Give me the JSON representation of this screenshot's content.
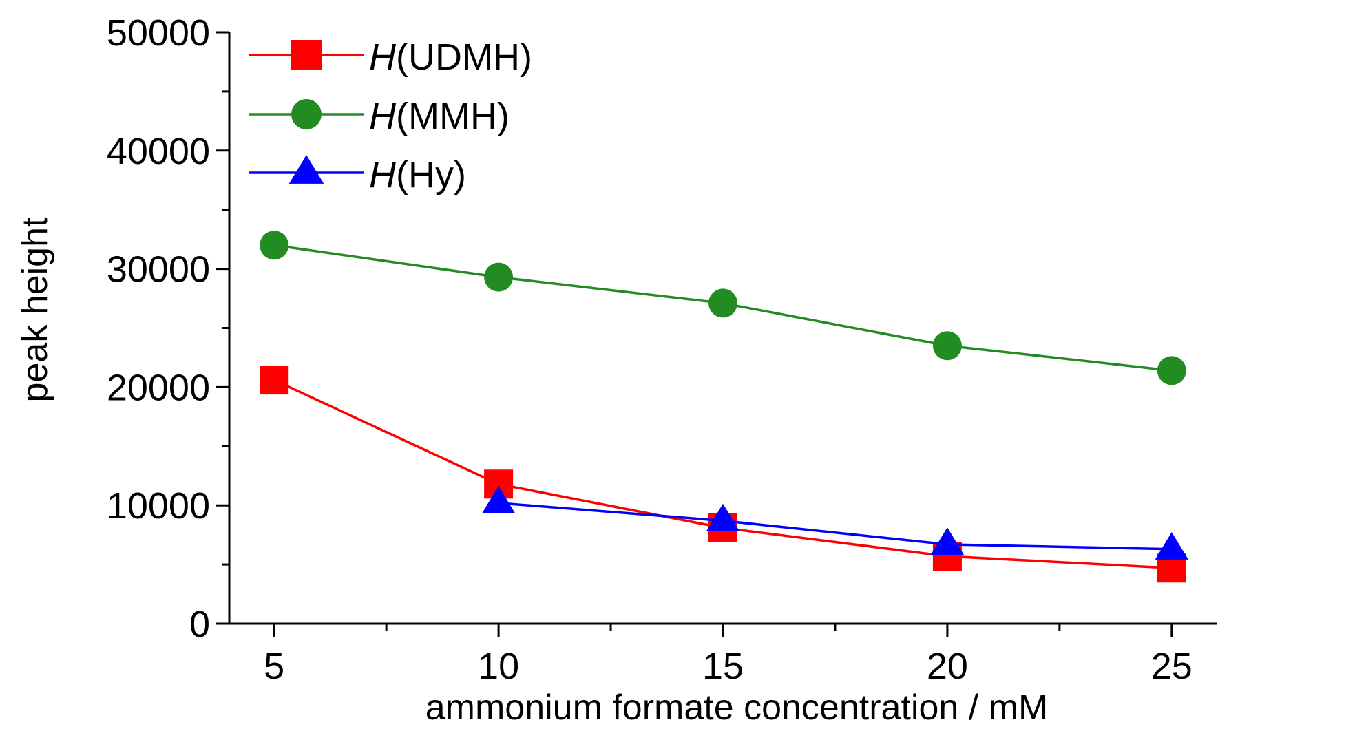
{
  "chart_data": {
    "type": "line",
    "title": "",
    "xlabel": "ammonium formate concentration / mM",
    "ylabel": "peak height",
    "x": [
      5,
      10,
      15,
      20,
      25
    ],
    "xlim": [
      4,
      26
    ],
    "ylim": [
      0,
      50000
    ],
    "xticks": [
      5,
      10,
      15,
      20,
      25
    ],
    "yticks": [
      0,
      10000,
      20000,
      30000,
      40000,
      50000
    ],
    "grid": false,
    "legend_position": "top-left",
    "series": [
      {
        "name_italic": "H",
        "name_rest": "(UDMH)",
        "marker": "square",
        "color": "#ff0000",
        "line_color": "#ff0000",
        "x": [
          5,
          10,
          15,
          20,
          25
        ],
        "values": [
          20600,
          11800,
          8100,
          5700,
          4700
        ]
      },
      {
        "name_italic": "H",
        "name_rest": "(MMH)",
        "marker": "circle",
        "color": "#228b22",
        "line_color": "#228b22",
        "x": [
          5,
          10,
          15,
          20,
          25
        ],
        "values": [
          32000,
          29300,
          27100,
          23500,
          21400
        ]
      },
      {
        "name_italic": "H",
        "name_rest": "(Hy)",
        "marker": "triangle",
        "color": "#0000ff",
        "line_color": "#0000ff",
        "x": [
          10,
          15,
          20,
          25
        ],
        "values": [
          10200,
          8700,
          6700,
          6300
        ]
      }
    ]
  }
}
